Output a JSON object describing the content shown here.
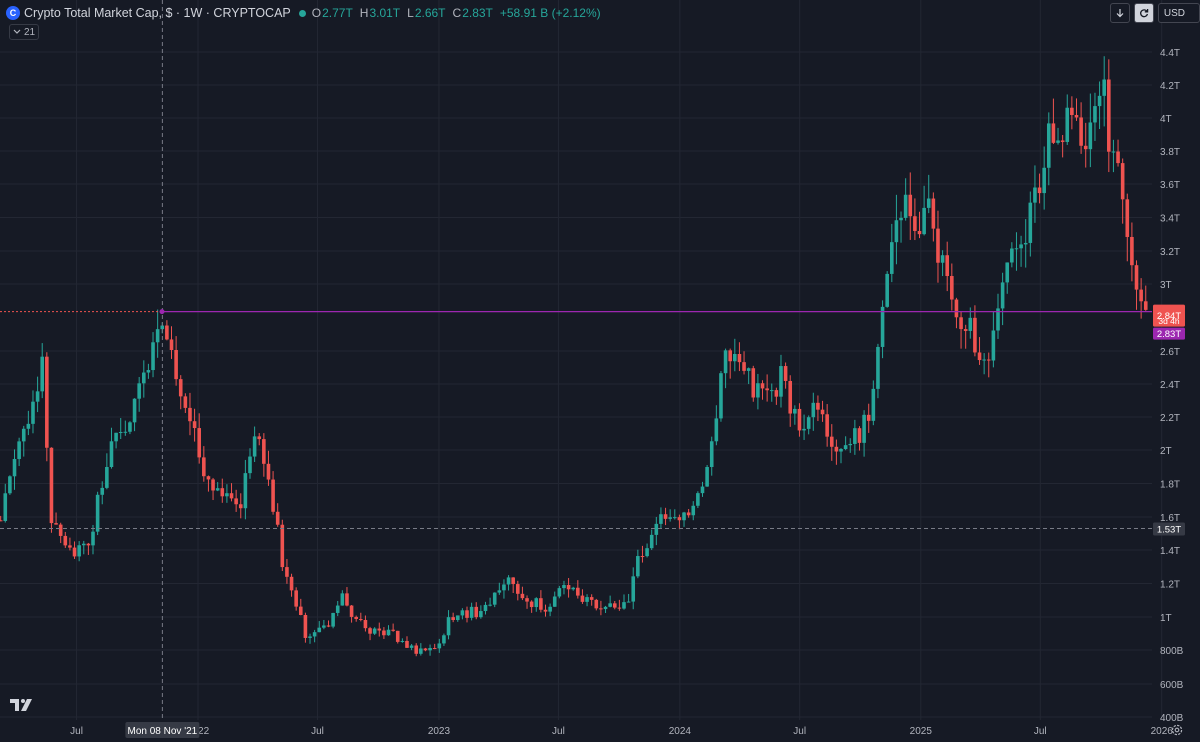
{
  "header": {
    "title": "Crypto Total Market Cap, $ · 1W · CRYPTOCAP",
    "symbol_icon_letter": "C",
    "ohlc": [
      {
        "label": "O",
        "value": "2.77T"
      },
      {
        "label": "H",
        "value": "3.01T"
      },
      {
        "label": "L",
        "value": "2.66T"
      },
      {
        "label": "C",
        "value": "2.83T"
      }
    ],
    "change": "+58.91 B (+2.12%)"
  },
  "indicator_toggle": {
    "label": "21"
  },
  "toolbar": {
    "arrow_icon": "arrow-down-icon",
    "refresh_icon": "refresh-icon",
    "currency": "USD"
  },
  "crosshair_label": "Mon 08 Nov '21",
  "colors": {
    "up": "#26a69a",
    "down": "#ef5350",
    "line": "#9c27b0",
    "background": "#161a25",
    "grid": "#232733"
  },
  "chart_data": {
    "type": "candlestick",
    "title": "Crypto Total Market Cap, $ · 1W · CRYPTOCAP",
    "interval": "1W",
    "x_ticks": [
      "Jul",
      "2022",
      "Jul",
      "2023",
      "Jul",
      "2024",
      "Jul",
      "2025",
      "Jul",
      "2026"
    ],
    "x_range": [
      "2021-03-07",
      "2026-02-28"
    ],
    "y_ticks": [
      "4.4T",
      "4.2T",
      "4T",
      "3.8T",
      "3.6T",
      "3.4T",
      "3.2T",
      "3T",
      "2.6T",
      "2.4T",
      "2.2T",
      "2T",
      "1.8T",
      "1.6T",
      "1.4T",
      "1.2T",
      "1T",
      "800B",
      "600B",
      "400B"
    ],
    "y_unit": "trillion USD",
    "y_range": [
      0.4,
      4.45
    ],
    "horizontal_line": {
      "value": 2.835,
      "color": "#9c27b0"
    },
    "price_labels": {
      "last_price": "2.84T",
      "countdown": "3d 4h",
      "line_price": "2.83T",
      "crosshair_price": "1.53T"
    },
    "crosshair": {
      "date": "2021-11-08",
      "price": 1.53
    },
    "legend": "none",
    "grid": true,
    "close_series": [
      [
        "2021-03-08",
        1.58
      ],
      [
        "2021-04-05",
        2.0
      ],
      [
        "2021-05-10",
        2.52
      ],
      [
        "2021-05-24",
        1.55
      ],
      [
        "2021-06-21",
        1.38
      ],
      [
        "2021-07-19",
        1.42
      ],
      [
        "2021-08-23",
        2.08
      ],
      [
        "2021-09-13",
        2.1
      ],
      [
        "2021-10-04",
        2.37
      ],
      [
        "2021-10-25",
        2.62
      ],
      [
        "2021-11-08",
        2.85
      ],
      [
        "2021-11-29",
        2.47
      ],
      [
        "2021-12-13",
        2.2
      ],
      [
        "2022-01-03",
        2.0
      ],
      [
        "2022-01-24",
        1.71
      ],
      [
        "2022-02-14",
        1.72
      ],
      [
        "2022-03-07",
        1.69
      ],
      [
        "2022-03-28",
        2.12
      ],
      [
        "2022-04-18",
        1.84
      ],
      [
        "2022-05-09",
        1.33
      ],
      [
        "2022-06-13",
        0.9
      ],
      [
        "2022-07-11",
        0.92
      ],
      [
        "2022-08-08",
        1.13
      ],
      [
        "2022-08-29",
        0.96
      ],
      [
        "2022-09-19",
        0.93
      ],
      [
        "2022-10-17",
        0.91
      ],
      [
        "2022-11-07",
        0.84
      ],
      [
        "2022-11-28",
        0.8
      ],
      [
        "2022-12-26",
        0.79
      ],
      [
        "2023-01-16",
        0.98
      ],
      [
        "2023-02-06",
        1.02
      ],
      [
        "2023-03-13",
        1.04
      ],
      [
        "2023-04-10",
        1.24
      ],
      [
        "2023-05-01",
        1.13
      ],
      [
        "2023-06-12",
        1.05
      ],
      [
        "2023-07-10",
        1.18
      ],
      [
        "2023-08-14",
        1.1
      ],
      [
        "2023-09-11",
        1.03
      ],
      [
        "2023-10-16",
        1.12
      ],
      [
        "2023-10-30",
        1.33
      ],
      [
        "2023-11-20",
        1.48
      ],
      [
        "2023-12-11",
        1.62
      ],
      [
        "2024-01-08",
        1.62
      ],
      [
        "2024-01-29",
        1.73
      ],
      [
        "2024-02-19",
        2.05
      ],
      [
        "2024-03-11",
        2.58
      ],
      [
        "2024-04-08",
        2.48
      ],
      [
        "2024-05-06",
        2.29
      ],
      [
        "2024-06-03",
        2.44
      ],
      [
        "2024-07-01",
        2.1
      ],
      [
        "2024-07-29",
        2.26
      ],
      [
        "2024-08-19",
        2.02
      ],
      [
        "2024-09-09",
        2.01
      ],
      [
        "2024-09-30",
        2.1
      ],
      [
        "2024-10-14",
        2.22
      ],
      [
        "2024-11-04",
        2.8
      ],
      [
        "2024-11-18",
        3.3
      ],
      [
        "2024-12-09",
        3.55
      ],
      [
        "2024-12-23",
        3.25
      ],
      [
        "2025-01-13",
        3.4
      ],
      [
        "2025-02-03",
        3.13
      ],
      [
        "2025-02-24",
        2.75
      ],
      [
        "2025-03-17",
        2.75
      ],
      [
        "2025-04-07",
        2.5
      ],
      [
        "2025-04-28",
        2.85
      ],
      [
        "2025-05-19",
        3.3
      ],
      [
        "2025-06-09",
        3.32
      ],
      [
        "2025-06-30",
        3.55
      ],
      [
        "2025-07-14",
        3.85
      ],
      [
        "2025-08-11",
        3.96
      ],
      [
        "2025-09-01",
        3.83
      ],
      [
        "2025-09-22",
        3.95
      ],
      [
        "2025-10-06",
        4.15
      ],
      [
        "2025-10-13",
        3.75
      ],
      [
        "2025-10-27",
        3.6
      ],
      [
        "2025-11-10",
        3.2
      ],
      [
        "2025-11-24",
        2.95
      ],
      [
        "2025-12-08",
        2.84
      ]
    ]
  }
}
